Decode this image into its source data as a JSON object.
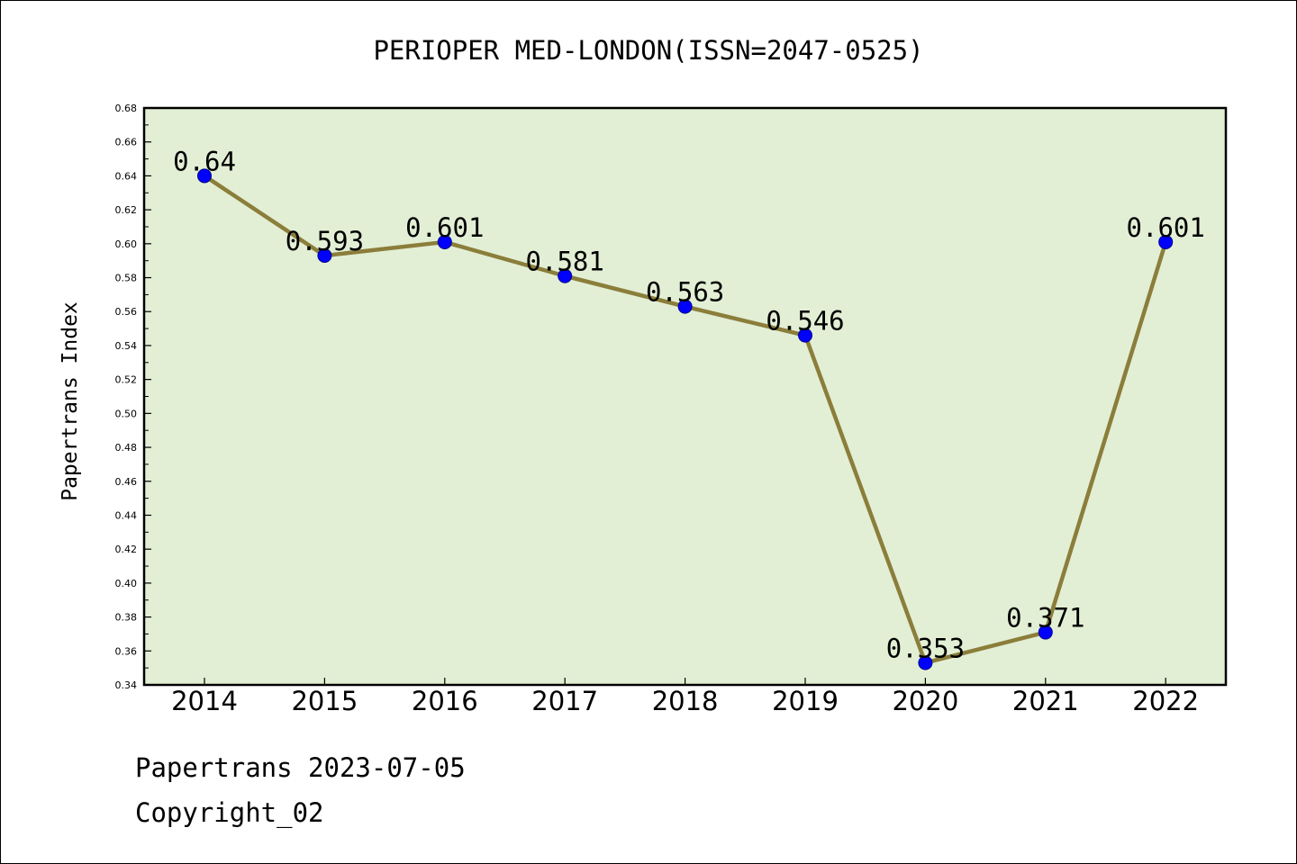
{
  "footer": {
    "line1": "Papertrans 2023-07-05",
    "line2": "Copyright_02"
  },
  "colors": {
    "plot_background": "#e2efd5",
    "line": "#8b7e3a",
    "marker": "#0000ff",
    "axis": "#000000"
  },
  "chart_data": {
    "type": "line",
    "title": "PERIOPER MED-LONDON(ISSN=2047-0525)",
    "xlabel": "",
    "ylabel": "Papertrans Index",
    "categories": [
      "2014",
      "2015",
      "2016",
      "2017",
      "2018",
      "2019",
      "2020",
      "2021",
      "2022"
    ],
    "series": [
      {
        "values": [
          0.64,
          0.593,
          0.601,
          0.581,
          0.563,
          0.546,
          0.353,
          0.371,
          0.601
        ]
      }
    ],
    "data_labels": [
      "0.64",
      "0.593",
      "0.601",
      "0.581",
      "0.563",
      "0.546",
      "0.353",
      "0.371",
      "0.601"
    ],
    "ylim": [
      0.34,
      0.68
    ],
    "yticks": [
      "0.34",
      "0.36",
      "0.38",
      "0.40",
      "0.42",
      "0.44",
      "0.46",
      "0.48",
      "0.50",
      "0.52",
      "0.54",
      "0.56",
      "0.58",
      "0.60",
      "0.62",
      "0.64",
      "0.66",
      "0.68"
    ],
    "grid": false,
    "legend": "none"
  }
}
